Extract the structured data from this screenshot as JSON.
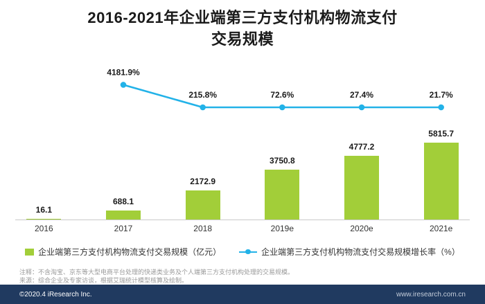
{
  "title": {
    "line1": "2016-2021年企业端第三方支付机构物流支付",
    "line2": "交易规模"
  },
  "chart_data": {
    "type": "bar+line",
    "categories": [
      "2016",
      "2017",
      "2018",
      "2019e",
      "2020e",
      "2021e"
    ],
    "series": [
      {
        "name": "企业端第三方支付机构物流支付交易规模（亿元）",
        "type": "bar",
        "color": "#a2ce39",
        "values": [
          16.1,
          688.1,
          2172.9,
          3750.8,
          4777.2,
          5815.7
        ],
        "ylim": [
          0,
          6000
        ]
      },
      {
        "name": "企业端第三方支付机构物流支付交易规模增长率（%）",
        "type": "line",
        "color": "#22b2e8",
        "values": [
          null,
          4181.9,
          215.8,
          72.6,
          27.4,
          21.7
        ],
        "value_suffix": "%"
      }
    ],
    "title": "2016-2021年企业端第三方支付机构物流支付交易规模",
    "xlabel": "",
    "ylabel": "",
    "grid": false,
    "legend_position": "bottom"
  },
  "legend": {
    "bar_label": "企业端第三方支付机构物流支付交易规模（亿元）",
    "line_label": "企业端第三方支付机构物流支付交易规模增长率（%）"
  },
  "notes": {
    "annotation": "注释：不含淘宝、京东等大型电商平台处理的快递类业务及个人端第三方支付机构处理的交易规模。",
    "source": "来源：综合企业及专家访谈，根据艾瑞统计模型核算及绘制。"
  },
  "footer": {
    "copyright": "©2020.4 iResearch Inc.",
    "website": "www.iresearch.com.cn"
  },
  "colors": {
    "bar": "#a2ce39",
    "line": "#22b2e8",
    "footer_bg": "#203a60"
  }
}
